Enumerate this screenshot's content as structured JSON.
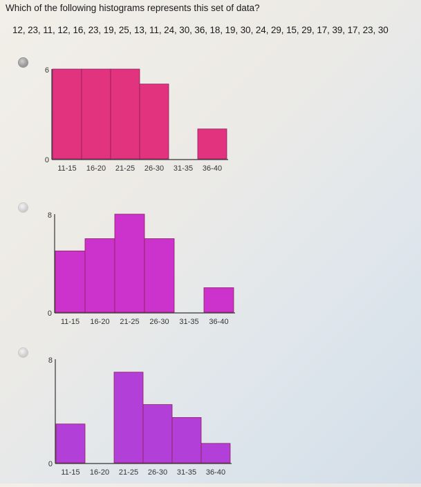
{
  "question": "Which of the following histograms represents this set of data?",
  "dataset": "12, 23, 11, 12, 16, 23, 19, 25, 13, 11, 24, 30, 36, 18, 19, 30, 24, 29, 15, 29, 17, 39, 17, 23, 30",
  "options": [
    {
      "selected": true
    },
    {
      "selected": false
    },
    {
      "selected": false
    }
  ],
  "chart_data": [
    {
      "type": "bar",
      "categories": [
        "11-15",
        "16-20",
        "21-25",
        "26-30",
        "31-35",
        "36-40"
      ],
      "values": [
        6,
        6,
        6,
        5,
        0,
        2
      ],
      "ylim": [
        0,
        6
      ],
      "y_tick_labels": [
        "0",
        "6"
      ],
      "color": "#e2337f"
    },
    {
      "type": "bar",
      "categories": [
        "11-15",
        "16-20",
        "21-25",
        "26-30",
        "31-35",
        "36-40"
      ],
      "values": [
        5,
        6,
        8,
        6,
        0,
        2
      ],
      "ylim": [
        0,
        8
      ],
      "y_tick_labels": [
        "0",
        "8"
      ],
      "color": "#cc33cc"
    },
    {
      "type": "bar",
      "categories": [
        "11-15",
        "16-20",
        "21-25",
        "26-30",
        "31-35",
        "36-40"
      ],
      "values": [
        3,
        0,
        7,
        4.5,
        3.5,
        1.5
      ],
      "ylim": [
        0,
        8
      ],
      "y_tick_labels": [
        "0",
        "8"
      ],
      "color": "#b33fd9"
    }
  ]
}
